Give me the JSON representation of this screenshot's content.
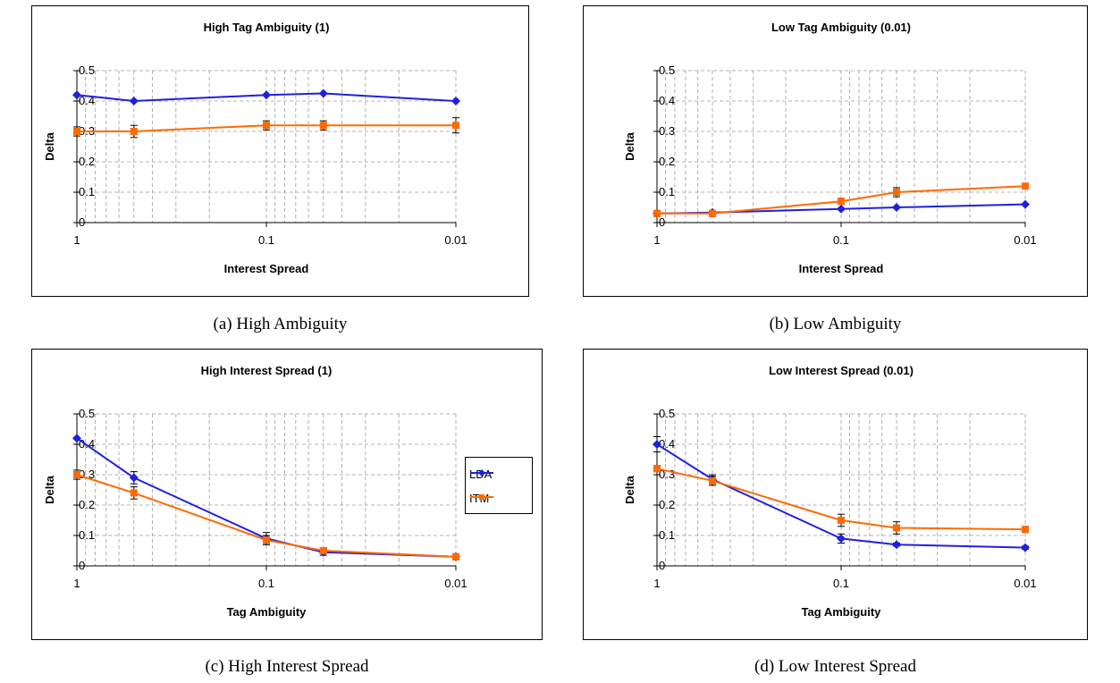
{
  "figure": {
    "colors": {
      "lda": "#1f1fe0",
      "itm": "#ff6a00",
      "grid": "#9a9a9a"
    },
    "legend": [
      "LDA",
      "ITM"
    ]
  },
  "chart_data": [
    {
      "type": "line",
      "title": "High Tag Ambiguity (1)",
      "xlabel": "Interest Spread",
      "ylabel": "Delta",
      "caption": "(a) High Ambiguity",
      "x_scale": "log-reversed",
      "xlim": [
        1,
        0.01
      ],
      "ylim": [
        0,
        0.5
      ],
      "xticks": [
        "1",
        "0.1",
        "0.01"
      ],
      "yticks": [
        "0",
        "0.1",
        "0.2",
        "0.3",
        "0.4",
        "0.5"
      ],
      "grid": true,
      "x": [
        1,
        0.5,
        0.1,
        0.05,
        0.01
      ],
      "series": [
        {
          "name": "LDA",
          "values": [
            0.42,
            0.4,
            0.42,
            0.425,
            0.4
          ],
          "errors": [
            0,
            0,
            0,
            0,
            0
          ]
        },
        {
          "name": "ITM",
          "values": [
            0.3,
            0.3,
            0.32,
            0.32,
            0.32
          ],
          "errors": [
            0.015,
            0.02,
            0.015,
            0.015,
            0.025
          ]
        }
      ]
    },
    {
      "type": "line",
      "title": "Low Tag Ambiguity (0.01)",
      "xlabel": "Interest Spread",
      "ylabel": "Delta",
      "caption": "(b) Low Ambiguity",
      "x_scale": "log-reversed",
      "xlim": [
        1,
        0.01
      ],
      "ylim": [
        0,
        0.5
      ],
      "xticks": [
        "1",
        "0.1",
        "0.01"
      ],
      "yticks": [
        "0",
        "0.1",
        "0.2",
        "0.3",
        "0.4",
        "0.5"
      ],
      "grid": true,
      "x": [
        1,
        0.5,
        0.1,
        0.05,
        0.01
      ],
      "series": [
        {
          "name": "LDA",
          "values": [
            0.03,
            0.033,
            0.045,
            0.05,
            0.06
          ],
          "errors": [
            0,
            0,
            0,
            0,
            0
          ]
        },
        {
          "name": "ITM",
          "values": [
            0.03,
            0.03,
            0.07,
            0.1,
            0.12
          ],
          "errors": [
            0.01,
            0.01,
            0.01,
            0.015,
            0.008
          ]
        }
      ]
    },
    {
      "type": "line",
      "title": "High Interest Spread (1)",
      "xlabel": "Tag Ambiguity",
      "ylabel": "Delta",
      "caption": "(c) High Interest Spread",
      "x_scale": "log-reversed",
      "xlim": [
        1,
        0.01
      ],
      "ylim": [
        0,
        0.5
      ],
      "xticks": [
        "1",
        "0.1",
        "0.01"
      ],
      "yticks": [
        "0",
        "0.1",
        "0.2",
        "0.3",
        "0.4",
        "0.5"
      ],
      "grid": true,
      "legend": "right",
      "x": [
        1,
        0.5,
        0.1,
        0.05,
        0.01
      ],
      "series": [
        {
          "name": "LDA",
          "values": [
            0.42,
            0.29,
            0.09,
            0.045,
            0.03
          ],
          "errors": [
            0,
            0.02,
            0.02,
            0.01,
            0.01
          ]
        },
        {
          "name": "ITM",
          "values": [
            0.3,
            0.24,
            0.085,
            0.05,
            0.03
          ],
          "errors": [
            0.015,
            0.02,
            0.015,
            0.01,
            0.008
          ]
        }
      ]
    },
    {
      "type": "line",
      "title": "Low Interest Spread (0.01)",
      "xlabel": "Tag Ambiguity",
      "ylabel": "Delta",
      "caption": "(d) Low Interest Spread",
      "x_scale": "log-reversed",
      "xlim": [
        1,
        0.01
      ],
      "ylim": [
        0,
        0.5
      ],
      "xticks": [
        "1",
        "0.1",
        "0.01"
      ],
      "yticks": [
        "0",
        "0.1",
        "0.2",
        "0.3",
        "0.4",
        "0.5"
      ],
      "grid": true,
      "x": [
        1,
        0.5,
        0.1,
        0.05,
        0.01
      ],
      "series": [
        {
          "name": "LDA",
          "values": [
            0.4,
            0.285,
            0.09,
            0.07,
            0.06
          ],
          "errors": [
            0.025,
            0.015,
            0.015,
            0.005,
            0.005
          ]
        },
        {
          "name": "ITM",
          "values": [
            0.32,
            0.28,
            0.15,
            0.125,
            0.12
          ],
          "errors": [
            0.01,
            0.015,
            0.02,
            0.02,
            0.01
          ]
        }
      ]
    }
  ]
}
